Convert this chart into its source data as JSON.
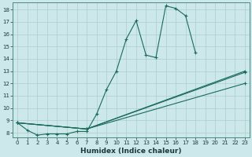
{
  "xlabel": "Humidex (Indice chaleur)",
  "ylabel": "",
  "bg_color": "#cce8ea",
  "grid_color": "#aacccc",
  "line_color": "#1a6b5a",
  "xlim": [
    -0.5,
    23.5
  ],
  "ylim": [
    7.6,
    18.6
  ],
  "yticks": [
    8,
    9,
    10,
    11,
    12,
    13,
    14,
    15,
    16,
    17,
    18
  ],
  "xticks": [
    0,
    1,
    2,
    3,
    4,
    5,
    6,
    7,
    8,
    9,
    10,
    11,
    12,
    13,
    14,
    15,
    16,
    17,
    18,
    19,
    20,
    21,
    22,
    23
  ],
  "series": [
    {
      "x": [
        0,
        1,
        2,
        3,
        4,
        5,
        6,
        7,
        8,
        9,
        10,
        11,
        12,
        13,
        14,
        15,
        16,
        17,
        18
      ],
      "y": [
        8.8,
        8.2,
        7.8,
        7.9,
        7.9,
        7.9,
        8.1,
        8.1,
        9.5,
        11.5,
        13.0,
        15.6,
        17.1,
        14.3,
        14.1,
        18.3,
        18.1,
        17.5,
        14.5
      ]
    },
    {
      "x": [
        0,
        7,
        23
      ],
      "y": [
        8.8,
        8.3,
        13.0
      ]
    },
    {
      "x": [
        0,
        7,
        23
      ],
      "y": [
        8.8,
        8.3,
        12.9
      ]
    },
    {
      "x": [
        0,
        7,
        23
      ],
      "y": [
        8.8,
        8.3,
        12.0
      ]
    }
  ]
}
